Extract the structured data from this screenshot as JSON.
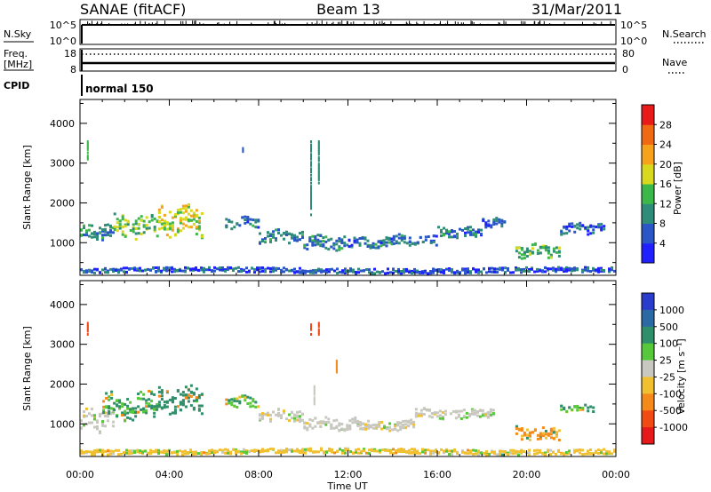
{
  "header": {
    "station": "SANAE (fitACF)",
    "beam": "Beam 13",
    "date": "31/Mar/2011"
  },
  "top_panels": {
    "nsky": {
      "label": "N.Sky",
      "tick_top": "10^5",
      "tick_bottom": "10^0"
    },
    "nsearch": {
      "label": "N.Search",
      "tick_top": "10^5",
      "tick_bottom": "10^0"
    },
    "freq": {
      "label_line1": "Freq.",
      "label_line2": "[MHz]",
      "tick_top": "18",
      "tick_bottom": "8"
    },
    "nave": {
      "label": "Nave",
      "tick_top": "80",
      "tick_bottom": "0"
    },
    "cpid": {
      "label": "CPID",
      "mode": "normal 150"
    }
  },
  "x_axis": {
    "label": "Time UT",
    "ticks": [
      "00:00",
      "04:00",
      "08:00",
      "12:00",
      "16:00",
      "20:00",
      "00:00"
    ]
  },
  "power_colorbar": {
    "label": "Power [dB]",
    "ticks": [
      "4",
      "8",
      "12",
      "16",
      "20",
      "24",
      "28"
    ],
    "colors": [
      "#1f1fff",
      "#2a56c8",
      "#2f8c78",
      "#3cb84a",
      "#d8d81e",
      "#f6a21c",
      "#f06a14",
      "#e81a1a"
    ]
  },
  "velocity_colorbar": {
    "label": "Velocity [m s⁻¹]",
    "ticks": [
      "1000",
      "500",
      "100",
      "25",
      "-25",
      "-100",
      "-500",
      "-1000"
    ],
    "colors": [
      "#2a3ccc",
      "#2c6aa6",
      "#2f8f6a",
      "#57c83a",
      "#c8c8c0",
      "#f0c030",
      "#f58a1a",
      "#f24a14",
      "#e61a1a"
    ]
  },
  "chart_data": [
    {
      "type": "heatmap",
      "title": "Power",
      "xlabel": "",
      "ylabel": "Slant Range [km]",
      "xlim": [
        0,
        24
      ],
      "ylim": [
        180,
        4600
      ],
      "y_ticks": [
        1000,
        2000,
        3000,
        4000
      ],
      "zlabel": "Power [dB]",
      "zlim": [
        0,
        32
      ],
      "bands": [
        {
          "x0": 0.0,
          "x1": 1.5,
          "y_center": 1250,
          "y_half": 180,
          "value": 10
        },
        {
          "x0": 1.5,
          "x1": 3.5,
          "y_center": 1400,
          "y_half": 260,
          "value": 14
        },
        {
          "x0": 3.5,
          "x1": 5.5,
          "y_center": 1550,
          "y_half": 330,
          "value": 17
        },
        {
          "x0": 6.5,
          "x1": 8.0,
          "y_center": 1500,
          "y_half": 120,
          "value": 8
        },
        {
          "x0": 8.0,
          "x1": 10.0,
          "y_center": 1150,
          "y_half": 140,
          "value": 9
        },
        {
          "x0": 10.0,
          "x1": 12.0,
          "y_center": 1000,
          "y_half": 150,
          "value": 9
        },
        {
          "x0": 12.0,
          "x1": 14.0,
          "y_center": 1000,
          "y_half": 120,
          "value": 8
        },
        {
          "x0": 14.0,
          "x1": 16.0,
          "y_center": 1050,
          "y_half": 120,
          "value": 8
        },
        {
          "x0": 16.0,
          "x1": 18.0,
          "y_center": 1250,
          "y_half": 110,
          "value": 8
        },
        {
          "x0": 18.0,
          "x1": 19.0,
          "y_center": 1500,
          "y_half": 100,
          "value": 7
        },
        {
          "x0": 19.5,
          "x1": 21.5,
          "y_center": 800,
          "y_half": 150,
          "value": 13
        },
        {
          "x0": 21.5,
          "x1": 23.5,
          "y_center": 1350,
          "y_half": 120,
          "value": 7
        },
        {
          "x0": 0.0,
          "x1": 24.0,
          "y_center": 300,
          "y_half": 60,
          "value": 6
        }
      ],
      "spikes": [
        {
          "x": 0.35,
          "y0": 3100,
          "y1": 3550,
          "value": 12
        },
        {
          "x": 10.35,
          "y0": 1700,
          "y1": 3550,
          "value": 9
        },
        {
          "x": 10.7,
          "y0": 2500,
          "y1": 3550,
          "value": 8
        },
        {
          "x": 7.3,
          "y0": 3250,
          "y1": 3450,
          "value": 6
        }
      ]
    },
    {
      "type": "heatmap",
      "title": "Velocity",
      "xlabel": "Time UT",
      "ylabel": "Slant Range [km]",
      "xlim": [
        0,
        24
      ],
      "ylim": [
        180,
        4600
      ],
      "y_ticks": [
        1000,
        2000,
        3000,
        4000
      ],
      "zlabel": "Velocity [m s⁻¹]",
      "zlim": [
        -1000,
        1000
      ],
      "bands": [
        {
          "x0": 0.0,
          "x1": 1.5,
          "y_center": 1100,
          "y_half": 250,
          "value": 20
        },
        {
          "x0": 1.0,
          "x1": 3.5,
          "y_center": 1450,
          "y_half": 300,
          "value": 150
        },
        {
          "x0": 3.5,
          "x1": 5.5,
          "y_center": 1600,
          "y_half": 300,
          "value": 300
        },
        {
          "x0": 6.5,
          "x1": 8.0,
          "y_center": 1550,
          "y_half": 120,
          "value": 80
        },
        {
          "x0": 8.0,
          "x1": 10.0,
          "y_center": 1200,
          "y_half": 130,
          "value": 0
        },
        {
          "x0": 10.0,
          "x1": 12.5,
          "y_center": 1000,
          "y_half": 130,
          "value": 0
        },
        {
          "x0": 12.5,
          "x1": 15.0,
          "y_center": 950,
          "y_half": 110,
          "value": 0
        },
        {
          "x0": 15.0,
          "x1": 18.5,
          "y_center": 1250,
          "y_half": 110,
          "value": 0
        },
        {
          "x0": 19.5,
          "x1": 21.5,
          "y_center": 750,
          "y_half": 170,
          "value": -150
        },
        {
          "x0": 21.5,
          "x1": 23.0,
          "y_center": 1400,
          "y_half": 80,
          "value": 120
        },
        {
          "x0": 0.0,
          "x1": 24.0,
          "y_center": 300,
          "y_half": 60,
          "value": -60
        }
      ],
      "spikes": [
        {
          "x": 0.35,
          "y0": 3250,
          "y1": 3550,
          "value": -800
        },
        {
          "x": 10.35,
          "y0": 3250,
          "y1": 3550,
          "value": -800
        },
        {
          "x": 10.7,
          "y0": 3250,
          "y1": 3550,
          "value": -700
        },
        {
          "x": 10.5,
          "y0": 1500,
          "y1": 2000,
          "value": 0
        },
        {
          "x": 11.5,
          "y0": 2300,
          "y1": 2600,
          "value": -120
        }
      ]
    }
  ]
}
